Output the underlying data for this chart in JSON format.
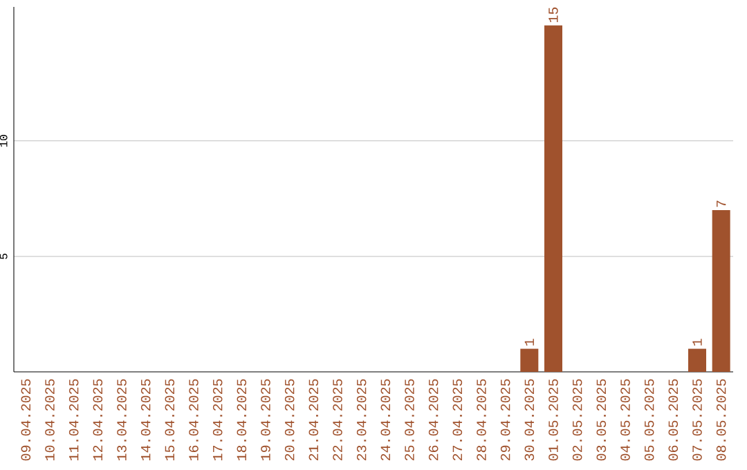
{
  "chart_data": {
    "type": "bar",
    "categories": [
      "09.04.2025",
      "10.04.2025",
      "11.04.2025",
      "12.04.2025",
      "13.04.2025",
      "14.04.2025",
      "15.04.2025",
      "16.04.2025",
      "17.04.2025",
      "18.04.2025",
      "19.04.2025",
      "20.04.2025",
      "21.04.2025",
      "22.04.2025",
      "23.04.2025",
      "24.04.2025",
      "25.04.2025",
      "26.04.2025",
      "27.04.2025",
      "28.04.2025",
      "29.04.2025",
      "30.04.2025",
      "01.05.2025",
      "02.05.2025",
      "03.05.2025",
      "04.05.2025",
      "05.05.2025",
      "06.05.2025",
      "07.05.2025",
      "08.05.2025"
    ],
    "values": [
      0,
      0,
      0,
      0,
      0,
      0,
      0,
      0,
      0,
      0,
      0,
      0,
      0,
      0,
      0,
      0,
      0,
      0,
      0,
      0,
      0,
      1,
      15,
      0,
      0,
      0,
      0,
      0,
      1,
      7
    ],
    "value_labels": [
      null,
      null,
      null,
      null,
      null,
      null,
      null,
      null,
      null,
      null,
      null,
      null,
      null,
      null,
      null,
      null,
      null,
      null,
      null,
      null,
      null,
      "1",
      "15",
      null,
      null,
      null,
      null,
      null,
      "1",
      "7"
    ],
    "color": "#a0522d",
    "ylim": [
      0,
      15.8
    ],
    "yticks": [
      5,
      10
    ],
    "grid": "y"
  }
}
